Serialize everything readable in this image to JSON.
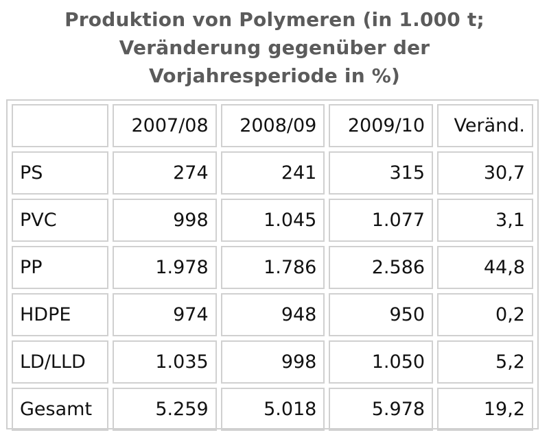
{
  "title_lines": [
    "Produktion von Polymeren (in 1.000 t;",
    "Veränderung gegenüber der",
    "Vorjahresperiode in %)"
  ],
  "chart_data": {
    "type": "table",
    "title": "Produktion von Polymeren (in 1.000 t; Veränderung gegenüber der Vorjahresperiode in %)",
    "columns": [
      "",
      "2007/08",
      "2008/09",
      "2009/10",
      "Veränd."
    ],
    "rows": [
      [
        "PS",
        "274",
        "241",
        "315",
        "30,7"
      ],
      [
        "PVC",
        "998",
        "1.045",
        "1.077",
        "3,1"
      ],
      [
        "PP",
        "1.978",
        "1.786",
        "2.586",
        "44,8"
      ],
      [
        "HDPE",
        "974",
        "948",
        "950",
        "0,2"
      ],
      [
        "LD/LLD",
        "1.035",
        "998",
        "1.050",
        "5,2"
      ],
      [
        "Gesamt",
        "5.259",
        "5.018",
        "5.978",
        "19,2"
      ]
    ]
  }
}
